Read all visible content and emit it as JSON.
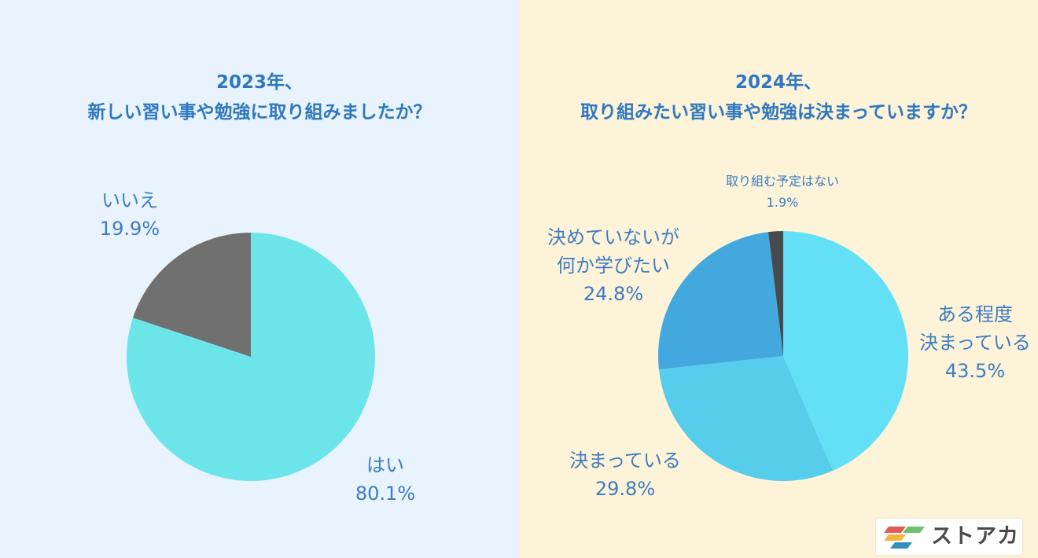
{
  "left": {
    "title_lines": [
      "2023年、",
      "新しい習い事や勉強に取り組みましたか？"
    ]
  },
  "right": {
    "title_lines": [
      "2024年、",
      "取り組みたい習い事や勉強は決まっていますか？"
    ]
  },
  "chart_data": [
    {
      "type": "pie",
      "title": "2023年、新しい習い事や勉強に取り組みましたか？",
      "slices": [
        {
          "label_lines": [
            "はい"
          ],
          "value": 80.1,
          "value_text": "80.1%",
          "color": "#6be4ea"
        },
        {
          "label_lines": [
            "いいえ"
          ],
          "value": 19.9,
          "value_text": "19.9%",
          "color": "#707070"
        }
      ]
    },
    {
      "type": "pie",
      "title": "2024年、取り組みたい習い事や勉強は決まっていますか？",
      "slices": [
        {
          "label_lines": [
            "ある程度",
            "決まっている"
          ],
          "value": 43.5,
          "value_text": "43.5%",
          "color": "#63e0f6"
        },
        {
          "label_lines": [
            "決まっている"
          ],
          "value": 29.8,
          "value_text": "29.8%",
          "color": "#55cdeb"
        },
        {
          "label_lines": [
            "決めていないが",
            "何か学びたい"
          ],
          "value": 24.8,
          "value_text": "24.8%",
          "color": "#43a8de"
        },
        {
          "label_lines": [
            "取り組む予定はない"
          ],
          "value": 1.9,
          "value_text": "1.9%",
          "color": "#464a4c"
        }
      ]
    }
  ],
  "logo": {
    "text": "ストアカ",
    "colors": [
      "#e35a58",
      "#f2b640",
      "#6cc26e",
      "#2f8fbf"
    ]
  }
}
